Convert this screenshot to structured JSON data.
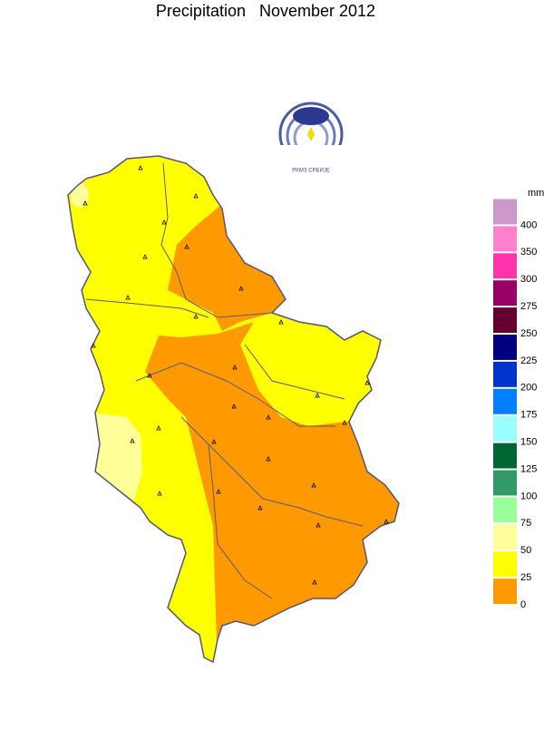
{
  "title": "Precipitation   November 2012",
  "logo": {
    "caption": "РХМЗ СРБИЈЕ"
  },
  "legend": {
    "unit": "mm",
    "colors": [
      "#ff9900",
      "#ffff00",
      "#ffff99",
      "#99ff99",
      "#339966",
      "#006633",
      "#99ffff",
      "#0080ff",
      "#0033cc",
      "#000080",
      "#660033",
      "#990066",
      "#ff33aa",
      "#ff80cc",
      "#cc99cc"
    ],
    "labels": [
      0,
      25,
      50,
      75,
      100,
      125,
      150,
      175,
      200,
      225,
      250,
      275,
      300,
      350,
      400
    ]
  }
}
